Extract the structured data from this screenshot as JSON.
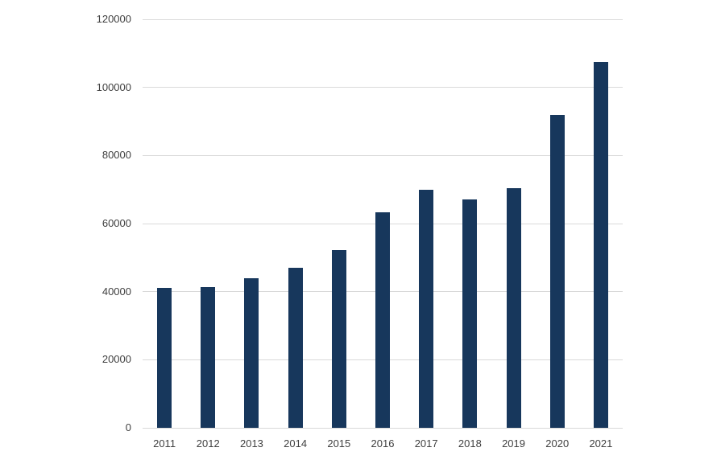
{
  "chart_data": {
    "type": "bar",
    "title": "",
    "xlabel": "",
    "ylabel": "",
    "categories": [
      "2011",
      "2012",
      "2013",
      "2014",
      "2015",
      "2016",
      "2017",
      "2018",
      "2019",
      "2020",
      "2021"
    ],
    "values": [
      41000,
      41400,
      44000,
      47000,
      52200,
      63400,
      70000,
      67000,
      70500,
      92000,
      107600
    ],
    "ylim": [
      0,
      120000
    ],
    "y_ticks": [
      0,
      20000,
      40000,
      60000,
      80000,
      100000,
      120000
    ],
    "y_tick_labels": [
      "0",
      "20000",
      "40000",
      "60000",
      "80000",
      "100000",
      "120000"
    ],
    "grid": true,
    "legend": false,
    "bar_color": "#17375c",
    "gridline_color": "#d9d9d9",
    "text_color": "#404040",
    "background_color": "#ffffff"
  }
}
